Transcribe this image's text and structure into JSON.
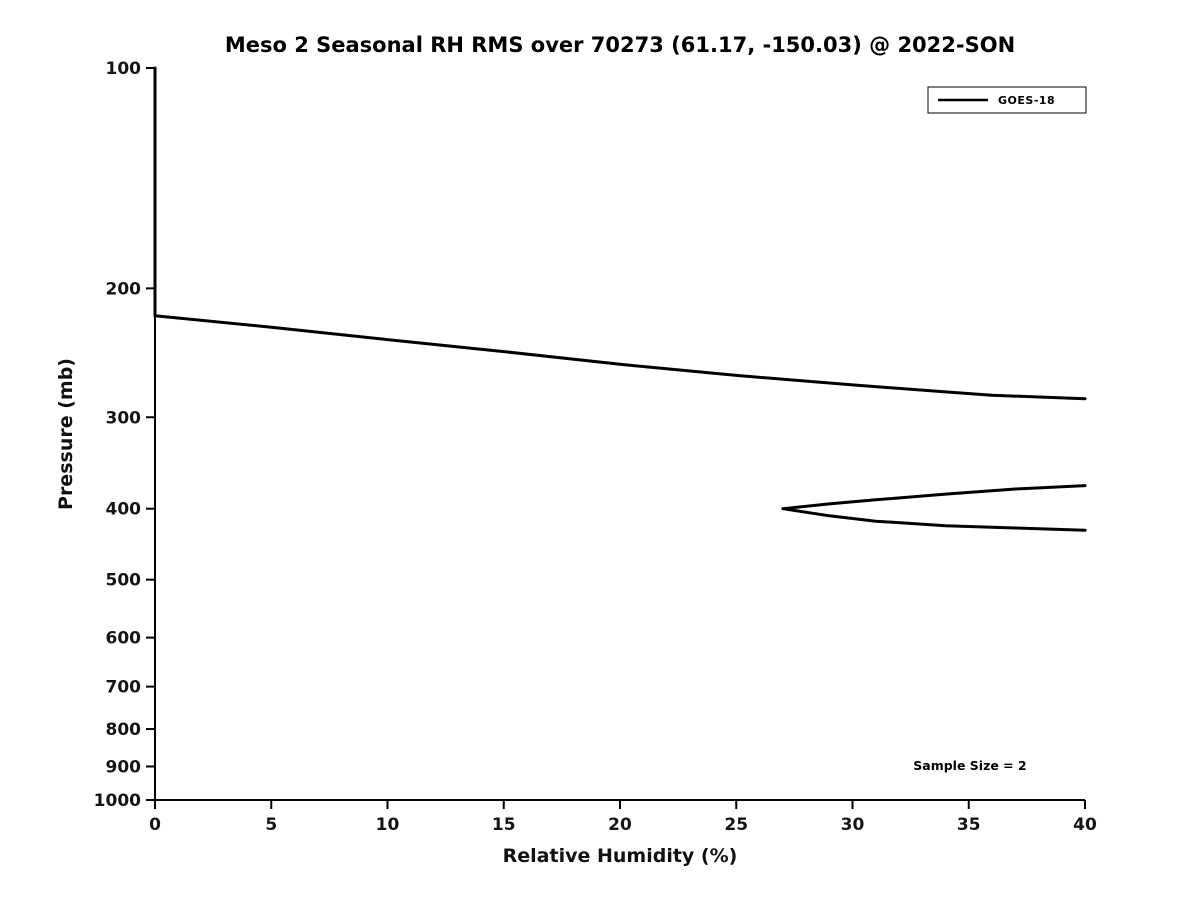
{
  "chart_data": {
    "type": "line",
    "title": "Meso 2 Seasonal RH RMS over 70273 (61.17, -150.03) @ 2022-SON",
    "xlabel": "Relative Humidity (%)",
    "ylabel": "Pressure (mb)",
    "xlim": [
      0,
      40
    ],
    "ylim": [
      100,
      1000
    ],
    "yscale": "log",
    "y_inverted": true,
    "grid": false,
    "xticks": [
      0,
      5,
      10,
      15,
      20,
      25,
      30,
      35,
      40
    ],
    "yticks": [
      100,
      200,
      300,
      400,
      500,
      600,
      700,
      800,
      900,
      1000
    ],
    "legend": {
      "position": "top-right"
    },
    "annotation": "Sample Size = 2",
    "series": [
      {
        "name": "GOES-18",
        "color": "#000000",
        "line_width": 3,
        "segments": [
          {
            "x": [
              0,
              0,
              5,
              10,
              15,
              20,
              25,
              30,
              34,
              36,
              40
            ],
            "y": [
              100,
              218,
              226,
              235,
              244,
              254,
              263,
              271,
              277,
              280,
              283
            ]
          },
          {
            "x": [
              40,
              37,
              34,
              31,
              29,
              27,
              29,
              31,
              34,
              37,
              40
            ],
            "y": [
              372,
              376,
              382,
              389,
              394,
              400,
              409,
              416,
              422,
              425,
              428
            ]
          }
        ]
      }
    ]
  }
}
